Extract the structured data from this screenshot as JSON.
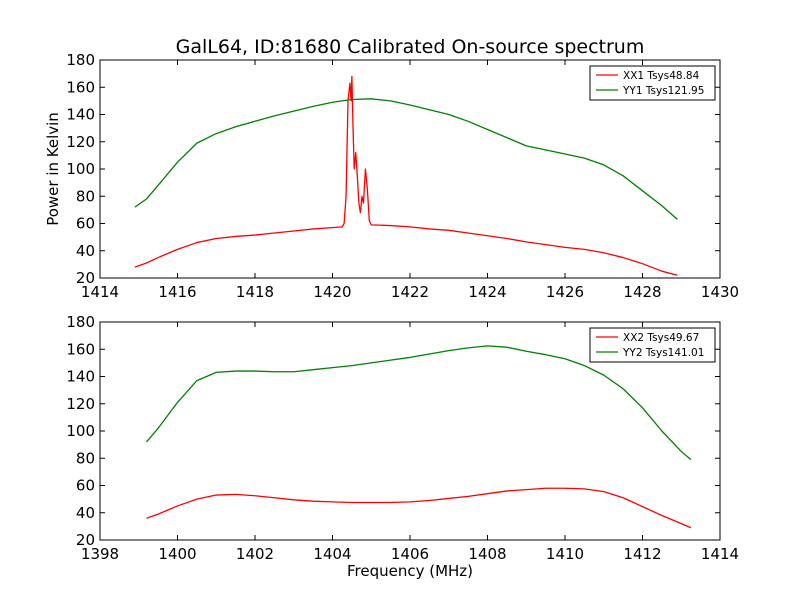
{
  "figure": {
    "title": "GalL64, ID:81680 Calibrated On-source spectrum",
    "xlabel": "Frequency (MHz)",
    "ylabel": "Power in Kelvin"
  },
  "chart_data": [
    {
      "type": "line",
      "title": "GalL64, ID:81680 Calibrated On-source spectrum",
      "xlabel": "",
      "ylabel": "Power in Kelvin",
      "xlim": [
        1414,
        1430
      ],
      "ylim": [
        20,
        180
      ],
      "xticks": [
        1414,
        1416,
        1418,
        1420,
        1422,
        1424,
        1426,
        1428,
        1430
      ],
      "yticks": [
        20,
        40,
        60,
        80,
        100,
        120,
        140,
        160,
        180
      ],
      "legend": "top-right",
      "grid": false,
      "series": [
        {
          "name": "XX1 Tsys48.84",
          "color": "#ff0000",
          "points": [
            [
              1414.9,
              28
            ],
            [
              1415.2,
              31
            ],
            [
              1415.5,
              35
            ],
            [
              1416.0,
              41
            ],
            [
              1416.5,
              46
            ],
            [
              1417.0,
              49
            ],
            [
              1417.5,
              50.5
            ],
            [
              1418.0,
              51.5
            ],
            [
              1418.5,
              53
            ],
            [
              1419.0,
              54.5
            ],
            [
              1419.5,
              56
            ],
            [
              1420.0,
              57
            ],
            [
              1420.25,
              57.5
            ],
            [
              1420.3,
              60
            ],
            [
              1420.35,
              80
            ],
            [
              1420.4,
              150
            ],
            [
              1420.45,
              163
            ],
            [
              1420.48,
              150
            ],
            [
              1420.5,
              168
            ],
            [
              1420.53,
              130
            ],
            [
              1420.56,
              100
            ],
            [
              1420.6,
              112
            ],
            [
              1420.64,
              95
            ],
            [
              1420.68,
              75
            ],
            [
              1420.72,
              68
            ],
            [
              1420.76,
              80
            ],
            [
              1420.8,
              75
            ],
            [
              1420.85,
              100
            ],
            [
              1420.9,
              85
            ],
            [
              1420.95,
              62
            ],
            [
              1421.0,
              59
            ],
            [
              1421.5,
              58.5
            ],
            [
              1422.0,
              57.5
            ],
            [
              1422.5,
              56
            ],
            [
              1423.0,
              55
            ],
            [
              1423.5,
              53
            ],
            [
              1424.0,
              51
            ],
            [
              1424.5,
              49
            ],
            [
              1425.0,
              46.5
            ],
            [
              1425.5,
              44.5
            ],
            [
              1426.0,
              42.5
            ],
            [
              1426.5,
              41
            ],
            [
              1427.0,
              38.5
            ],
            [
              1427.5,
              35
            ],
            [
              1428.0,
              30.5
            ],
            [
              1428.5,
              25
            ],
            [
              1428.9,
              22
            ]
          ]
        },
        {
          "name": "YY1 Tsys121.95",
          "color": "#008000",
          "points": [
            [
              1414.9,
              72
            ],
            [
              1415.2,
              78
            ],
            [
              1415.5,
              88
            ],
            [
              1416.0,
              105
            ],
            [
              1416.5,
              119
            ],
            [
              1417.0,
              126
            ],
            [
              1417.5,
              131
            ],
            [
              1418.0,
              135
            ],
            [
              1418.5,
              139
            ],
            [
              1419.0,
              142.5
            ],
            [
              1419.5,
              146
            ],
            [
              1420.0,
              149
            ],
            [
              1420.5,
              151
            ],
            [
              1421.0,
              151.5
            ],
            [
              1421.5,
              150
            ],
            [
              1422.0,
              147
            ],
            [
              1422.5,
              143.5
            ],
            [
              1423.0,
              140
            ],
            [
              1423.5,
              135
            ],
            [
              1424.0,
              129
            ],
            [
              1424.5,
              123
            ],
            [
              1425.0,
              117
            ],
            [
              1425.5,
              114
            ],
            [
              1426.0,
              111
            ],
            [
              1426.5,
              108
            ],
            [
              1427.0,
              103
            ],
            [
              1427.5,
              95
            ],
            [
              1428.0,
              84
            ],
            [
              1428.5,
              73
            ],
            [
              1428.9,
              63
            ]
          ]
        }
      ]
    },
    {
      "type": "line",
      "title": "",
      "xlabel": "Frequency (MHz)",
      "ylabel": "",
      "xlim": [
        1398,
        1414
      ],
      "ylim": [
        20,
        180
      ],
      "xticks": [
        1398,
        1400,
        1402,
        1404,
        1406,
        1408,
        1410,
        1412,
        1414
      ],
      "yticks": [
        20,
        40,
        60,
        80,
        100,
        120,
        140,
        160,
        180
      ],
      "legend": "top-right",
      "grid": false,
      "series": [
        {
          "name": "XX2 Tsys49.67",
          "color": "#ff0000",
          "points": [
            [
              1399.2,
              36
            ],
            [
              1399.5,
              39
            ],
            [
              1400.0,
              45
            ],
            [
              1400.5,
              50
            ],
            [
              1401.0,
              53
            ],
            [
              1401.5,
              53.5
            ],
            [
              1402.0,
              52.5
            ],
            [
              1402.5,
              51
            ],
            [
              1403.0,
              49.5
            ],
            [
              1403.5,
              48.5
            ],
            [
              1404.0,
              48
            ],
            [
              1404.5,
              47.5
            ],
            [
              1405.0,
              47.5
            ],
            [
              1405.5,
              47.5
            ],
            [
              1406.0,
              48
            ],
            [
              1406.5,
              49
            ],
            [
              1407.0,
              50.5
            ],
            [
              1407.5,
              52
            ],
            [
              1408.0,
              54
            ],
            [
              1408.5,
              56
            ],
            [
              1409.0,
              57
            ],
            [
              1409.5,
              58
            ],
            [
              1410.0,
              58
            ],
            [
              1410.5,
              57.5
            ],
            [
              1411.0,
              55.5
            ],
            [
              1411.5,
              51
            ],
            [
              1412.0,
              44.5
            ],
            [
              1412.5,
              38
            ],
            [
              1413.0,
              32
            ],
            [
              1413.25,
              29
            ]
          ]
        },
        {
          "name": "YY2 Tsys141.01",
          "color": "#008000",
          "points": [
            [
              1399.2,
              92
            ],
            [
              1399.5,
              102
            ],
            [
              1400.0,
              121
            ],
            [
              1400.5,
              137
            ],
            [
              1401.0,
              143
            ],
            [
              1401.5,
              144
            ],
            [
              1402.0,
              144
            ],
            [
              1402.5,
              143.5
            ],
            [
              1403.0,
              143.5
            ],
            [
              1403.5,
              145
            ],
            [
              1404.0,
              146.5
            ],
            [
              1404.5,
              148
            ],
            [
              1405.0,
              150
            ],
            [
              1405.5,
              152
            ],
            [
              1406.0,
              154
            ],
            [
              1406.5,
              156.5
            ],
            [
              1407.0,
              159
            ],
            [
              1407.5,
              161
            ],
            [
              1408.0,
              162.5
            ],
            [
              1408.5,
              161.5
            ],
            [
              1409.0,
              158.5
            ],
            [
              1409.5,
              156
            ],
            [
              1410.0,
              153
            ],
            [
              1410.5,
              148
            ],
            [
              1411.0,
              141
            ],
            [
              1411.5,
              131
            ],
            [
              1412.0,
              117
            ],
            [
              1412.5,
              100
            ],
            [
              1413.0,
              85
            ],
            [
              1413.25,
              79
            ]
          ]
        }
      ]
    }
  ]
}
